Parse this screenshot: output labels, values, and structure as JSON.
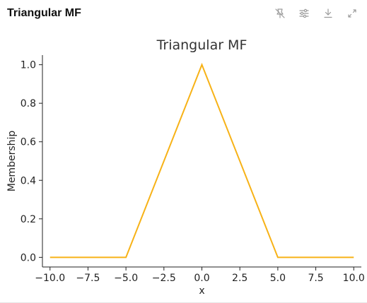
{
  "card": {
    "title": "Triangular MF"
  },
  "toolbar": {
    "icons": [
      "pin-off-icon",
      "sliders-icon",
      "download-icon",
      "expand-icon"
    ]
  },
  "colors": {
    "series": "#F7B217",
    "axis": "#222222",
    "icon": "#9a9a9a"
  },
  "chart_data": {
    "type": "line",
    "title": "Triangular MF",
    "xlabel": "x",
    "ylabel": "Membership",
    "xlim": [
      -10.5,
      10.5
    ],
    "ylim": [
      -0.05,
      1.05
    ],
    "xticks": [
      -10.0,
      -7.5,
      -5.0,
      -2.5,
      0.0,
      2.5,
      5.0,
      7.5,
      10.0
    ],
    "xtick_labels": [
      "−10.0",
      "−7.5",
      "−5.0",
      "−2.5",
      "0.0",
      "2.5",
      "5.0",
      "7.5",
      "10.0"
    ],
    "yticks": [
      0.0,
      0.2,
      0.4,
      0.6,
      0.8,
      1.0
    ],
    "ytick_labels": [
      "0.0",
      "0.2",
      "0.4",
      "0.6",
      "0.8",
      "1.0"
    ],
    "grid": false,
    "series": [
      {
        "x": [
          -10,
          -5,
          0,
          5,
          10
        ],
        "y": [
          0,
          0,
          1,
          0,
          0
        ]
      }
    ]
  }
}
